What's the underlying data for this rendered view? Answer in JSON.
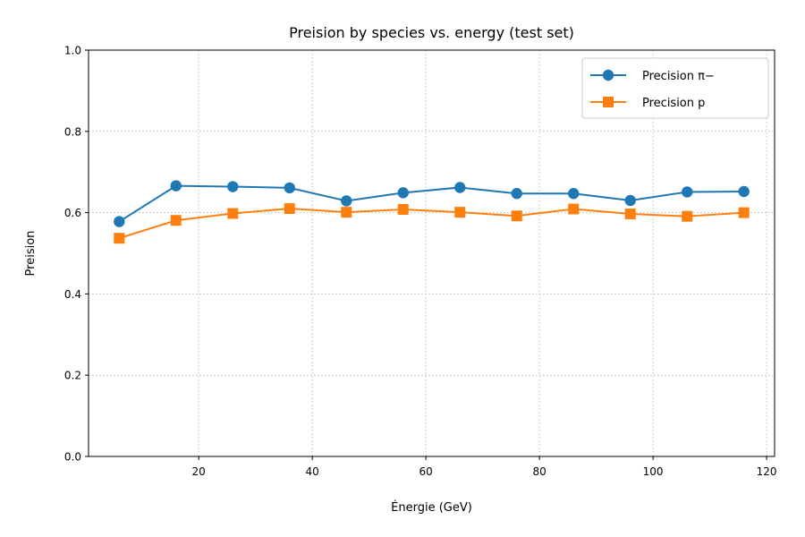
{
  "chart_data": {
    "type": "line",
    "title": "Preision by species vs. energy (test set)",
    "xlabel": "Énergie (GeV)",
    "ylabel": "Preision",
    "xlim": [
      0.6,
      121.4
    ],
    "ylim": [
      0.0,
      1.0
    ],
    "xticks": [
      20,
      40,
      60,
      80,
      100,
      120
    ],
    "yticks": [
      0.0,
      0.2,
      0.4,
      0.6,
      0.8,
      1.0
    ],
    "grid": true,
    "legend_position": "top-right",
    "x": [
      6,
      16,
      26,
      36,
      46,
      56,
      66,
      76,
      86,
      96,
      106,
      116
    ],
    "series": [
      {
        "name": "Precision π−",
        "color": "#1f77b4",
        "marker": "circle",
        "values": [
          0.578,
          0.666,
          0.664,
          0.661,
          0.629,
          0.649,
          0.662,
          0.647,
          0.647,
          0.63,
          0.651,
          0.652
        ]
      },
      {
        "name": "Precision p",
        "color": "#ff7f0e",
        "marker": "square",
        "values": [
          0.537,
          0.581,
          0.598,
          0.61,
          0.601,
          0.608,
          0.601,
          0.592,
          0.609,
          0.597,
          0.591,
          0.6
        ]
      }
    ]
  }
}
